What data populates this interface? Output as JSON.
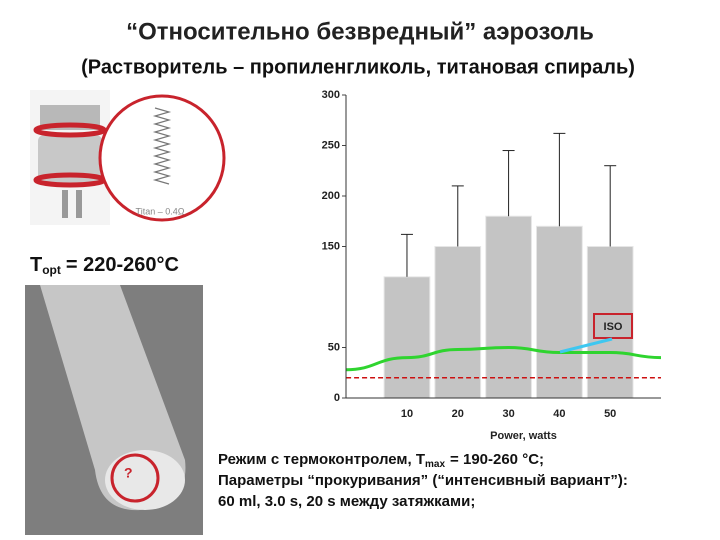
{
  "slide": {
    "title": "“Относительно безвредный” аэрозоль",
    "subtitle": "(Растворитель – пропиленгликоль, титановая спираль)",
    "coil_label": "Titan – 0.4Ω",
    "topt": {
      "symbol": "T",
      "subscript": "opt",
      "value": "= 220-260°C"
    },
    "question": "?",
    "caption": {
      "line1_start": "Режим с термоконтролем, T",
      "line1_subscript": "max",
      "line1_end": "= 190-260 °C;",
      "line2": "Параметры “прокуривания” (“интенсивный вариант”):",
      "line3": "60 ml, 3.0 s, 20 s между затяжками;"
    }
  },
  "chart_data": {
    "type": "bar",
    "x": [
      10,
      20,
      30,
      40,
      50
    ],
    "values": [
      120,
      150,
      180,
      170,
      150
    ],
    "errors": [
      42,
      60,
      65,
      92,
      80
    ],
    "color": "#c4c4c4",
    "xlim": [
      -2,
      60
    ],
    "xticks": [
      10,
      20,
      30,
      40,
      50
    ],
    "ylim": [
      0,
      300
    ],
    "yticks": [
      0,
      50,
      150,
      200,
      250,
      300
    ],
    "xlabel": "Power, watts",
    "annotation": "ISO",
    "lines": [
      {
        "color": "#2fd42f",
        "x": [
          -2,
          10,
          20,
          30,
          40,
          50,
          60
        ],
        "values": [
          28,
          40,
          48,
          50,
          45,
          45,
          40
        ]
      },
      {
        "color": "#cc1111",
        "dashed": true,
        "x": [
          -2,
          60
        ],
        "values": [
          20,
          20
        ]
      }
    ]
  }
}
